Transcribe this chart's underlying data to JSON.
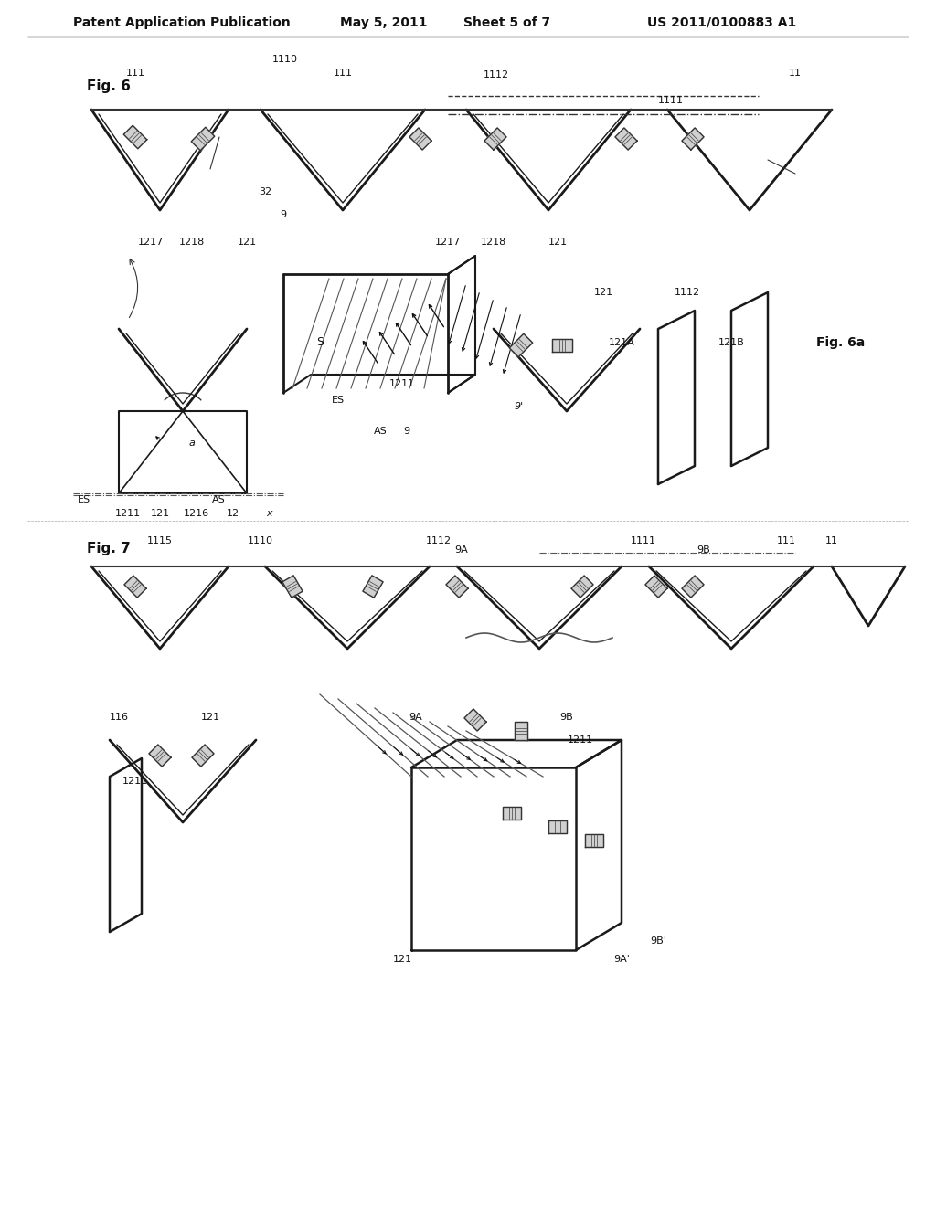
{
  "bg_color": "#ffffff",
  "header_text": "Patent Application Publication",
  "header_date": "May 5, 2011",
  "header_sheet": "Sheet 5 of 7",
  "header_patent": "US 2011/0100883 A1",
  "fig6_label": "Fig. 6",
  "fig7_label": "Fig. 7",
  "fig6a_label": "Fig. 6a",
  "line_color": "#1a1a1a",
  "dashed_color": "#333333"
}
